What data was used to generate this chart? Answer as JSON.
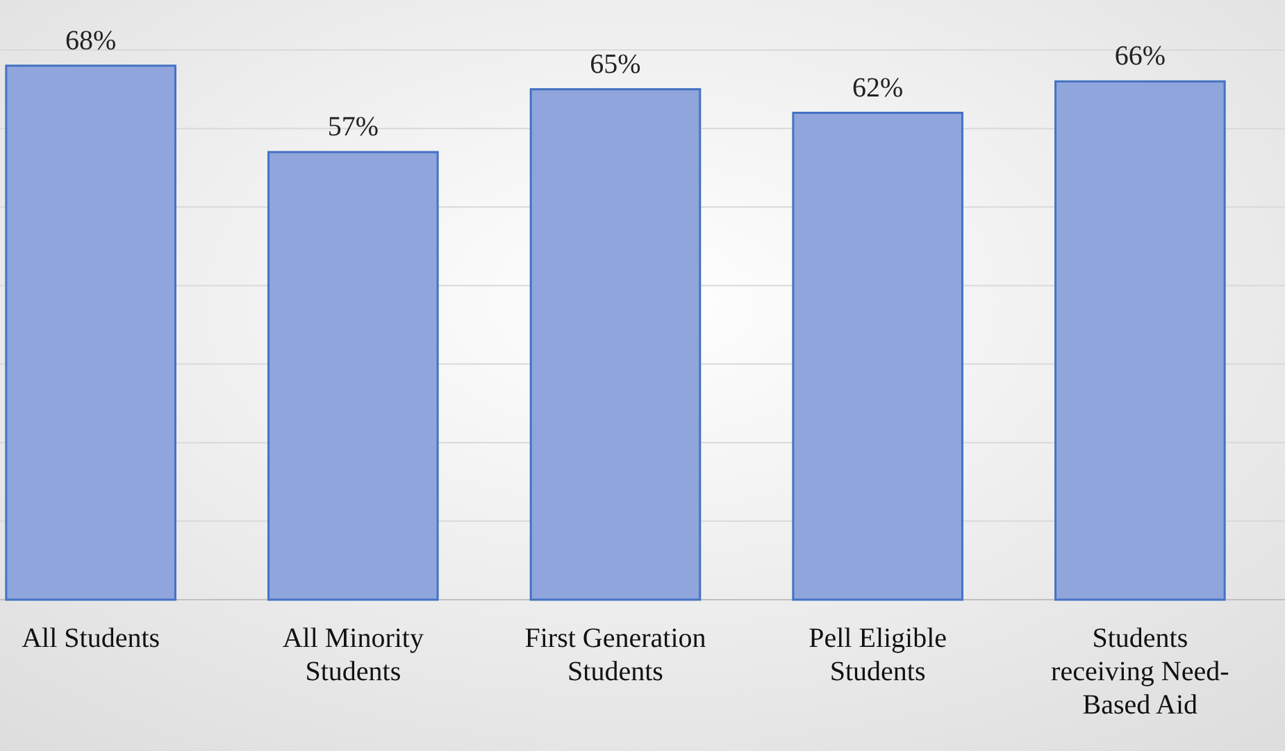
{
  "chart_data": {
    "type": "bar",
    "categories": [
      "All Students",
      "All Minority Students",
      "First Generation Students",
      "Pell Eligible Students",
      "Students receiving Need-Based Aid"
    ],
    "values": [
      68,
      57,
      65,
      62,
      66
    ],
    "value_labels": [
      "68%",
      "57%",
      "65%",
      "62%",
      "66%"
    ],
    "color": "#8fa5dc",
    "ylim": [
      0,
      70
    ],
    "yticks": [
      {
        "value": 0,
        "label": null
      },
      {
        "value": 10,
        "label": null
      },
      {
        "value": 20,
        "label": null
      },
      {
        "value": 30,
        "label": null
      },
      {
        "value": 40,
        "label": null
      },
      {
        "value": 50,
        "label": null
      },
      {
        "value": 60,
        "label": null
      },
      {
        "value": 70,
        "label": null
      }
    ],
    "grid": "y"
  }
}
